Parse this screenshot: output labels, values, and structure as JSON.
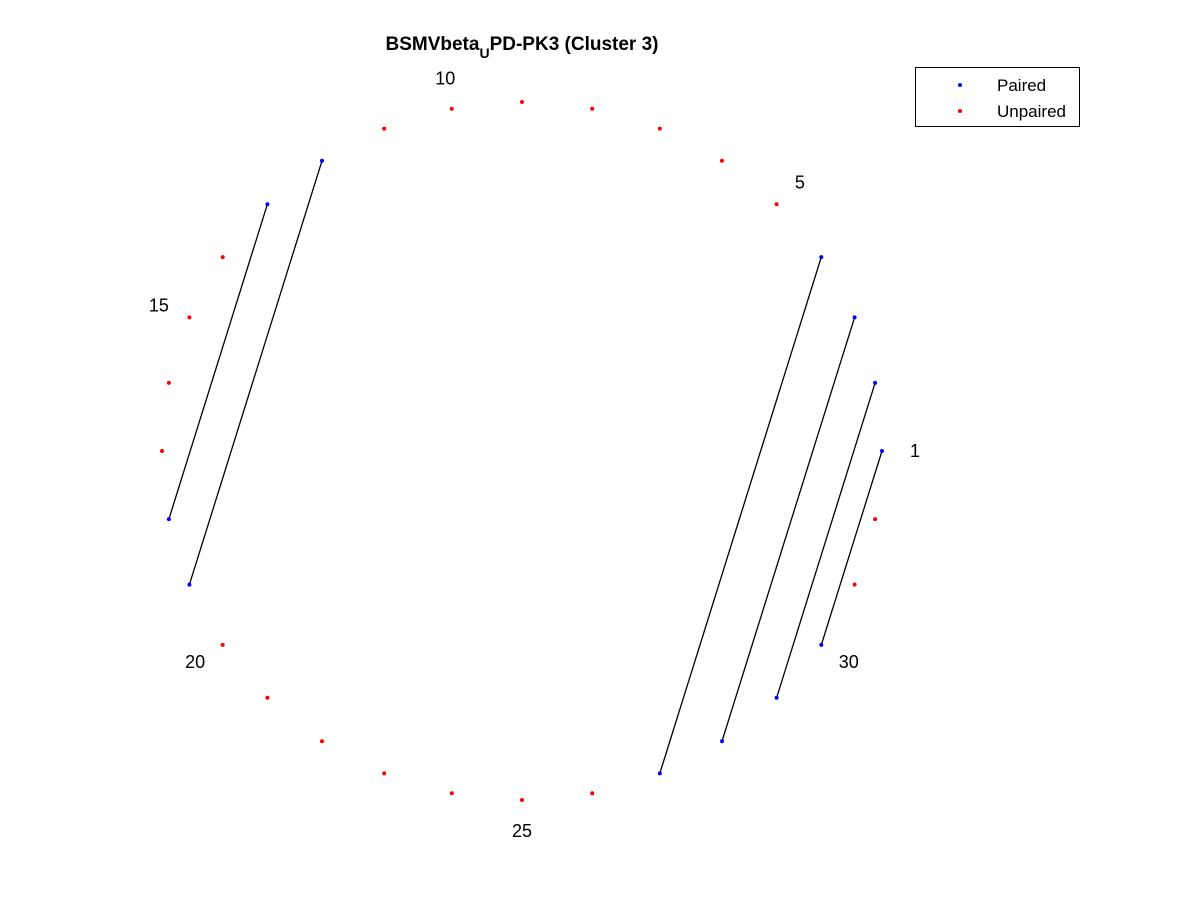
{
  "chart_data": {
    "type": "scatter",
    "title": {
      "prefix": "BSMVbeta",
      "subscript": "U",
      "suffix": "PD-PK3 (Cluster 3)"
    },
    "n_positions": 32,
    "layout": "circle",
    "axis_visible": false,
    "grid": false,
    "legend_position": "top-right",
    "legend": [
      {
        "name": "Paired",
        "color": "#0000ff"
      },
      {
        "name": "Unpaired",
        "color": "#ff0000"
      }
    ],
    "index_labels": [
      "1",
      "5",
      "10",
      "15",
      "20",
      "25",
      "30"
    ],
    "series": [
      {
        "name": "Paired",
        "color": "#0000ff",
        "positions": [
          1,
          2,
          3,
          4,
          12,
          13,
          18,
          19,
          27,
          28,
          29,
          30
        ]
      },
      {
        "name": "Unpaired",
        "color": "#ff0000",
        "positions": [
          5,
          6,
          7,
          8,
          9,
          10,
          11,
          14,
          15,
          16,
          17,
          20,
          21,
          22,
          23,
          24,
          25,
          26,
          31,
          32
        ]
      }
    ],
    "pairs": [
      [
        1,
        30
      ],
      [
        2,
        29
      ],
      [
        3,
        28
      ],
      [
        4,
        27
      ],
      [
        12,
        19
      ],
      [
        13,
        18
      ]
    ],
    "pair_line_color": "#000000"
  }
}
